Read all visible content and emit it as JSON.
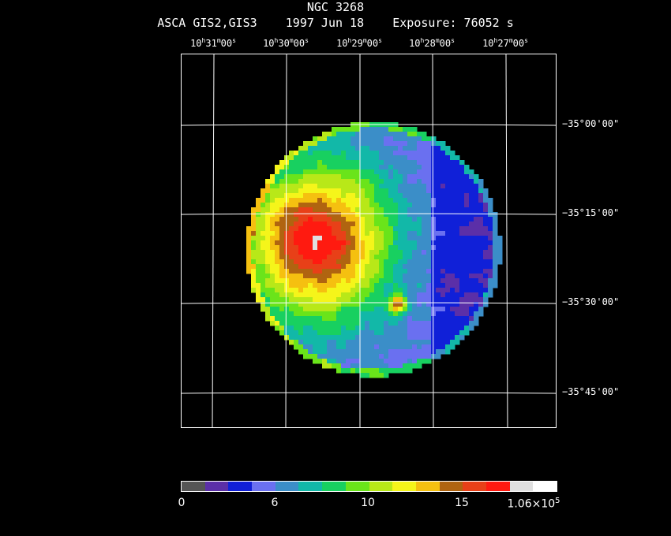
{
  "header": {
    "object": "NGC 3268",
    "info": "ASCA GIS2,GIS3    1997 Jun 18    Exposure: 76052 s"
  },
  "ra_ticks": [
    {
      "h": "10",
      "m": "31",
      "s": "00"
    },
    {
      "h": "10",
      "m": "30",
      "s": "00"
    },
    {
      "h": "10",
      "m": "29",
      "s": "00"
    },
    {
      "h": "10",
      "m": "28",
      "s": "00"
    },
    {
      "h": "10",
      "m": "27",
      "s": "00"
    }
  ],
  "dec_ticks": [
    "−35°00'00\"",
    "−35°15'00\"",
    "−35°30'00\"",
    "−35°45'00\""
  ],
  "colorbar": {
    "colors": [
      "#555555",
      "#5b2fa8",
      "#1020d8",
      "#6a70f0",
      "#3b8ec8",
      "#12b8a8",
      "#18d060",
      "#6ae41a",
      "#b8e818",
      "#f5f51a",
      "#f5c010",
      "#b06410",
      "#e84018",
      "#ff1a10",
      "#e0e0e0",
      "#ffffff"
    ],
    "label_0": "0",
    "label_6": "6",
    "label_10": "10",
    "label_15": "15",
    "label_max_mantissa": "1.06×10",
    "label_max_exp": "5"
  }
}
